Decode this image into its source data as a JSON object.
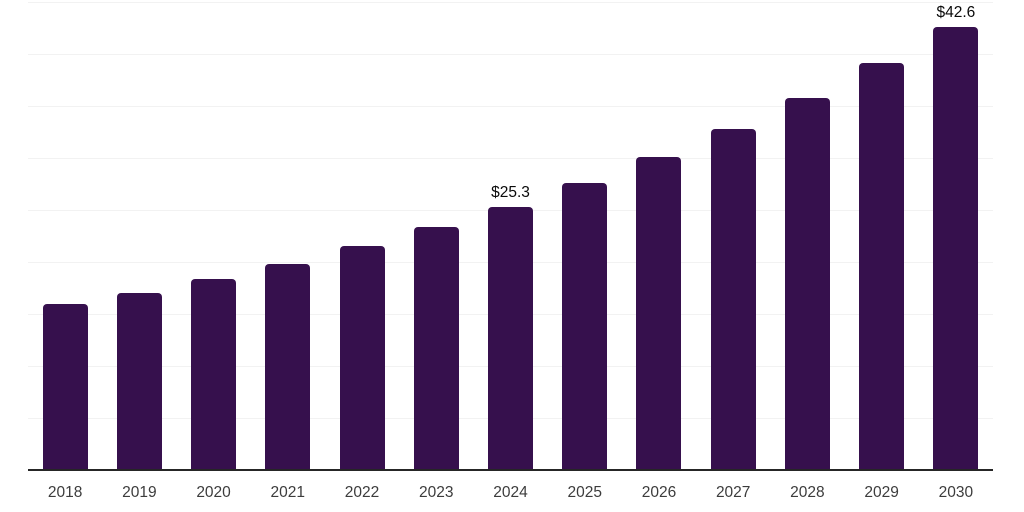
{
  "chart_data": {
    "type": "bar",
    "title": "",
    "subtitle": "",
    "xlabel": "",
    "ylabel": "",
    "categories": [
      "2018",
      "2019",
      "2020",
      "2021",
      "2022",
      "2023",
      "2024",
      "2025",
      "2026",
      "2027",
      "2028",
      "2029",
      "2030"
    ],
    "values": [
      16.0,
      17.0,
      18.4,
      19.8,
      21.5,
      23.4,
      25.3,
      27.6,
      30.1,
      32.8,
      35.8,
      39.1,
      42.6
    ],
    "value_labels": [
      null,
      null,
      null,
      null,
      null,
      null,
      "$25.3",
      null,
      null,
      null,
      null,
      null,
      "$42.6"
    ],
    "ylim": [
      0,
      45.2
    ],
    "gridline_values": [
      5,
      10,
      15,
      20,
      25,
      30,
      35,
      40,
      45
    ],
    "grid": "horizontal-only",
    "y_axis_tick_labels": "none",
    "legend_position": "none",
    "colors": {
      "bar": "#36104D",
      "gridline": "#F2F2F2",
      "axis_line": "#262626",
      "tick_label": "#3C3C3C",
      "value_label": "#0A0A0A",
      "background": "#FFFFFF"
    }
  }
}
